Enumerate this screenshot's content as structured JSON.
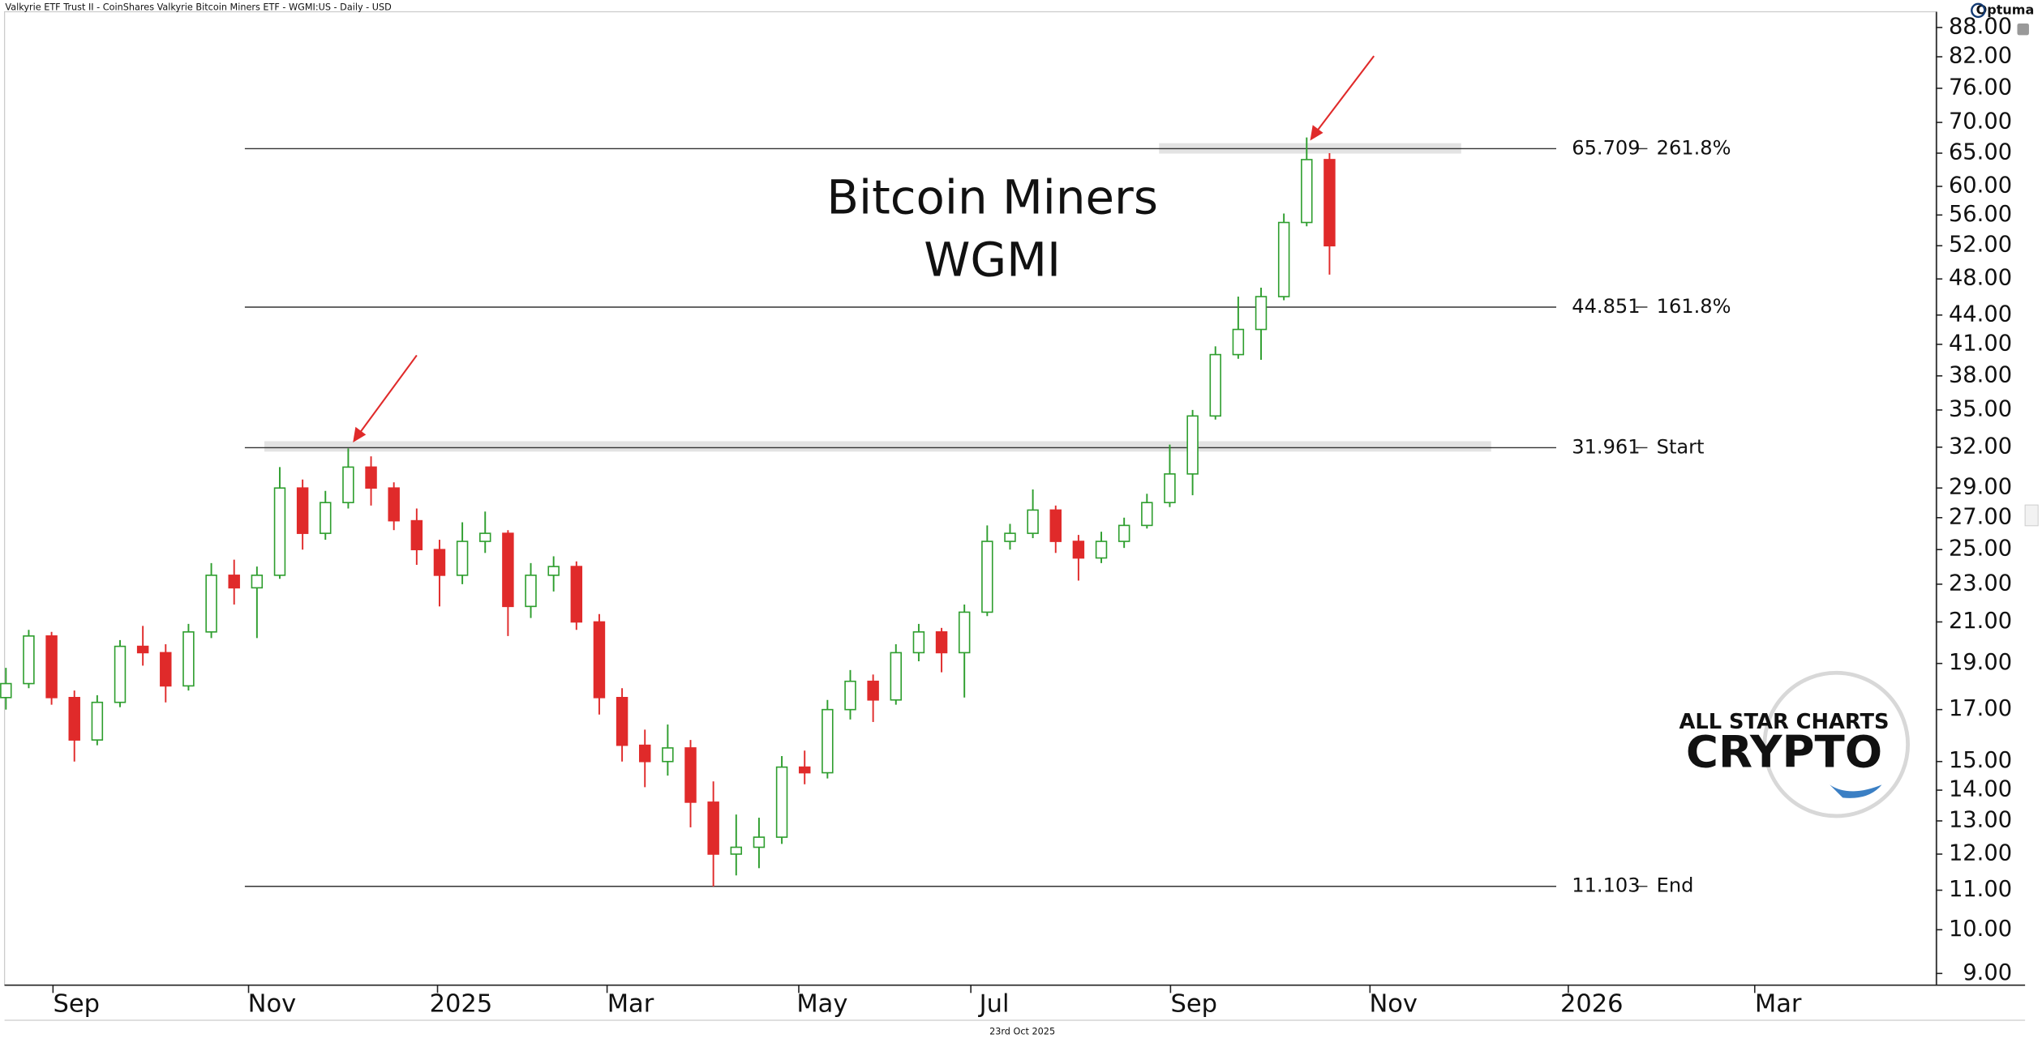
{
  "header": "Valkyrie ETF Trust II - CoinShares Valkyrie Bitcoin Miners ETF - WGMI:US - Daily - USD",
  "footer": "23rd Oct 2025",
  "brand": "Optuma",
  "logo": {
    "line1": "ALL STAR CHARTS",
    "line2": "CRYPTO"
  },
  "chart_data": {
    "type": "candlestick",
    "annotations": [
      "Bitcoin Miners",
      "WGMI"
    ],
    "up_color": "#2e9e2e",
    "down_color": "#e02a2a",
    "log_scale": true,
    "x": [
      0,
      1,
      2,
      3,
      4,
      5,
      6,
      7,
      8,
      9,
      10,
      11,
      12,
      13,
      14,
      15,
      16,
      17,
      18,
      19,
      20,
      21,
      22,
      23,
      24,
      25,
      26,
      27,
      28,
      29,
      30,
      31,
      32,
      33,
      34,
      35,
      36,
      37,
      38,
      39,
      40,
      41,
      42,
      43,
      44,
      45,
      46,
      47,
      48,
      49,
      50,
      51,
      52,
      53,
      54,
      55,
      56,
      57,
      58
    ],
    "open": [
      17.5,
      18.1,
      20.3,
      17.5,
      15.8,
      17.3,
      19.8,
      19.5,
      18.0,
      20.5,
      23.5,
      22.8,
      23.5,
      29.0,
      26.0,
      28.0,
      30.5,
      29.0,
      26.8,
      25.0,
      23.5,
      25.5,
      26.0,
      21.8,
      23.5,
      24.0,
      21.0,
      17.5,
      15.6,
      15.0,
      15.5,
      13.6,
      12.0,
      12.2,
      12.5,
      14.8,
      14.6,
      17.0,
      18.2,
      17.4,
      19.5,
      20.5,
      19.5,
      21.5,
      25.5,
      26.0,
      27.5,
      25.5,
      24.5,
      25.5,
      26.5,
      28.0,
      30.0,
      34.5,
      40.0,
      42.5,
      46.0,
      55.0,
      64.0
    ],
    "high": [
      18.8,
      20.6,
      20.5,
      17.8,
      17.6,
      20.1,
      20.8,
      19.9,
      20.9,
      24.2,
      24.4,
      24.0,
      30.5,
      29.6,
      28.8,
      31.9,
      31.3,
      29.4,
      27.6,
      25.6,
      26.7,
      27.4,
      26.2,
      24.2,
      24.6,
      24.3,
      21.4,
      17.9,
      16.2,
      16.4,
      15.8,
      14.3,
      13.2,
      13.1,
      15.2,
      15.4,
      17.4,
      18.7,
      18.5,
      19.9,
      20.9,
      20.7,
      21.9,
      26.5,
      26.6,
      28.9,
      27.8,
      25.9,
      26.1,
      27.0,
      28.6,
      32.2,
      35.0,
      40.8,
      46.0,
      47.0,
      56.2,
      67.5,
      65.0
    ],
    "low": [
      17.0,
      17.9,
      17.2,
      15.0,
      15.6,
      17.1,
      18.9,
      17.3,
      17.8,
      20.2,
      21.9,
      20.2,
      23.3,
      25.0,
      25.6,
      27.6,
      27.8,
      26.2,
      24.1,
      21.8,
      23.0,
      24.8,
      20.3,
      21.2,
      22.6,
      20.6,
      16.8,
      15.0,
      14.1,
      14.5,
      12.8,
      11.1,
      11.4,
      11.6,
      12.3,
      14.2,
      14.4,
      16.6,
      16.5,
      17.2,
      19.1,
      18.6,
      17.5,
      21.3,
      25.0,
      25.7,
      24.8,
      23.2,
      24.2,
      25.1,
      26.3,
      27.7,
      28.5,
      34.2,
      39.6,
      39.5,
      45.6,
      54.5,
      48.5
    ],
    "close": [
      18.1,
      20.3,
      17.5,
      15.8,
      17.3,
      19.8,
      19.5,
      18.0,
      20.5,
      23.5,
      22.8,
      23.5,
      29.0,
      26.0,
      28.0,
      30.5,
      29.0,
      26.8,
      25.0,
      23.5,
      25.5,
      26.0,
      21.8,
      23.5,
      24.0,
      21.0,
      17.5,
      15.6,
      15.0,
      15.5,
      13.6,
      12.0,
      12.2,
      12.5,
      14.8,
      14.6,
      17.0,
      18.2,
      17.4,
      19.5,
      20.5,
      19.5,
      21.5,
      25.5,
      26.0,
      27.5,
      25.5,
      24.5,
      25.5,
      26.5,
      28.0,
      30.0,
      34.5,
      40.0,
      42.5,
      46.0,
      55.0,
      64.0,
      52.0
    ],
    "levels": [
      {
        "value": 65.709,
        "name": "261.8%"
      },
      {
        "value": 44.851,
        "name": "161.8%"
      },
      {
        "value": 31.961,
        "name": "Start"
      },
      {
        "value": 11.103,
        "name": "End"
      }
    ],
    "xlim": [
      -0.06,
      84.57
    ],
    "xticks": [
      {
        "value": 3.09,
        "label": "Sep"
      },
      {
        "value": 11.66,
        "label": "Nov"
      },
      {
        "value": 19.94,
        "label": "2025"
      },
      {
        "value": 27.37,
        "label": "Mar"
      },
      {
        "value": 35.77,
        "label": "May"
      },
      {
        "value": 43.31,
        "label": "Jul"
      },
      {
        "value": 52.06,
        "label": "Sep"
      },
      {
        "value": 60.8,
        "label": "Nov"
      },
      {
        "value": 69.49,
        "label": "2026"
      },
      {
        "value": 77.66,
        "label": "Mar"
      }
    ],
    "ylim": [
      8.75,
      91.4
    ],
    "yticks": [
      {
        "value": 9,
        "label": "9.00"
      },
      {
        "value": 10,
        "label": "10.00"
      },
      {
        "value": 11,
        "label": "11.00"
      },
      {
        "value": 12,
        "label": "12.00"
      },
      {
        "value": 13,
        "label": "13.00"
      },
      {
        "value": 14,
        "label": "14.00"
      },
      {
        "value": 15,
        "label": "15.00"
      },
      {
        "value": 17,
        "label": "17.00"
      },
      {
        "value": 19,
        "label": "19.00"
      },
      {
        "value": 21,
        "label": "21.00"
      },
      {
        "value": 23,
        "label": "23.00"
      },
      {
        "value": 25,
        "label": "25.00"
      },
      {
        "value": 27,
        "label": "27.00"
      },
      {
        "value": 29,
        "label": "29.00"
      },
      {
        "value": 32,
        "label": "32.00"
      },
      {
        "value": 35,
        "label": "35.00"
      },
      {
        "value": 38,
        "label": "38.00"
      },
      {
        "value": 41,
        "label": "41.00"
      },
      {
        "value": 44,
        "label": "44.00"
      },
      {
        "value": 48,
        "label": "48.00"
      },
      {
        "value": 52,
        "label": "52.00"
      },
      {
        "value": 56,
        "label": "56.00"
      },
      {
        "value": 60,
        "label": "60.00"
      },
      {
        "value": 65,
        "label": "65.00"
      },
      {
        "value": 70,
        "label": "70.00"
      },
      {
        "value": 76,
        "label": "76.00"
      },
      {
        "value": 82,
        "label": "82.00"
      },
      {
        "value": 88,
        "label": "88.00"
      }
    ]
  }
}
